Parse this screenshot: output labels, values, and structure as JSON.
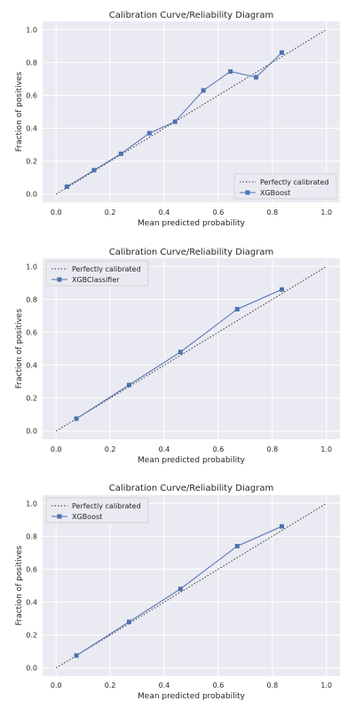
{
  "chart_data": [
    {
      "type": "line",
      "title": "Calibration Curve/Reliability Diagram",
      "xlabel": "Mean predicted probability",
      "ylabel": "Fraction of positives",
      "xlim": [
        -0.05,
        1.05
      ],
      "ylim": [
        -0.05,
        1.05
      ],
      "xticks": [
        "0.0",
        "0.2",
        "0.4",
        "0.6",
        "0.8",
        "1.0"
      ],
      "yticks": [
        "0.0",
        "0.2",
        "0.4",
        "0.6",
        "0.8",
        "1.0"
      ],
      "grid": true,
      "legend_position": "lower-right",
      "series": [
        {
          "name": "Perfectly calibrated",
          "style": "dotted",
          "color": "#333333",
          "x": [
            0,
            1
          ],
          "y": [
            0,
            1
          ]
        },
        {
          "name": "XGBoost",
          "style": "line-square-markers",
          "color": "#4c72b0",
          "x": [
            0.04,
            0.14,
            0.24,
            0.345,
            0.44,
            0.545,
            0.645,
            0.74,
            0.835
          ],
          "y": [
            0.045,
            0.145,
            0.245,
            0.37,
            0.44,
            0.63,
            0.745,
            0.71,
            0.86
          ]
        }
      ]
    },
    {
      "type": "line",
      "title": "Calibration Curve/Reliability Diagram",
      "xlabel": "Mean predicted probability",
      "ylabel": "Fraction of positives",
      "xlim": [
        -0.05,
        1.05
      ],
      "ylim": [
        -0.05,
        1.05
      ],
      "xticks": [
        "0.0",
        "0.2",
        "0.4",
        "0.6",
        "0.8",
        "1.0"
      ],
      "yticks": [
        "0.0",
        "0.2",
        "0.4",
        "0.6",
        "0.8",
        "1.0"
      ],
      "grid": true,
      "legend_position": "upper-left",
      "series": [
        {
          "name": "Perfectly calibrated",
          "style": "dotted",
          "color": "#333333",
          "x": [
            0,
            1
          ],
          "y": [
            0,
            1
          ]
        },
        {
          "name": "XGBClassifier",
          "style": "line-square-markers",
          "color": "#4c72b0",
          "x": [
            0.075,
            0.27,
            0.46,
            0.67,
            0.835
          ],
          "y": [
            0.075,
            0.28,
            0.48,
            0.74,
            0.86
          ]
        }
      ]
    },
    {
      "type": "line",
      "title": "Calibration Curve/Reliability Diagram",
      "xlabel": "Mean predicted probability",
      "ylabel": "Fraction of positives",
      "xlim": [
        -0.05,
        1.05
      ],
      "ylim": [
        -0.05,
        1.05
      ],
      "xticks": [
        "0.0",
        "0.2",
        "0.4",
        "0.6",
        "0.8",
        "1.0"
      ],
      "yticks": [
        "0.0",
        "0.2",
        "0.4",
        "0.6",
        "0.8",
        "1.0"
      ],
      "grid": true,
      "legend_position": "upper-left",
      "series": [
        {
          "name": "Perfectly calibrated",
          "style": "dotted",
          "color": "#333333",
          "x": [
            0,
            1
          ],
          "y": [
            0,
            1
          ]
        },
        {
          "name": "XGBoost",
          "style": "line-square-markers",
          "color": "#4c72b0",
          "x": [
            0.075,
            0.27,
            0.46,
            0.67,
            0.835
          ],
          "y": [
            0.075,
            0.28,
            0.48,
            0.74,
            0.86
          ]
        }
      ]
    }
  ],
  "colors": {
    "plot_background": "#eaeaf2",
    "grid": "#ffffff",
    "accent": "#4c72b0"
  }
}
